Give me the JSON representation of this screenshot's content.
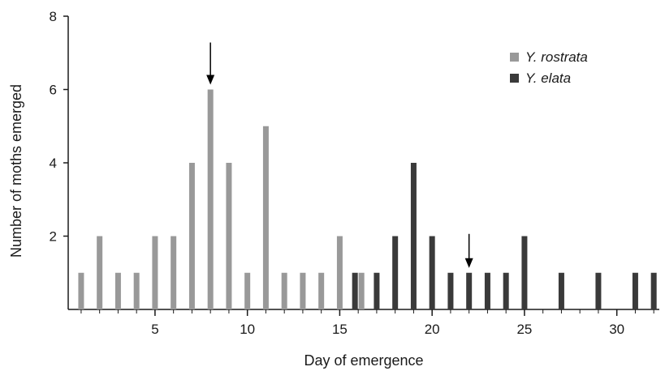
{
  "chart_data": {
    "type": "bar",
    "title": "",
    "xlabel": "Day of emergence",
    "ylabel": "Number of moths emerged",
    "xlim": [
      0.3,
      32.3
    ],
    "ylim": [
      0,
      8
    ],
    "x_ticks": [
      5,
      10,
      15,
      20,
      25,
      30
    ],
    "y_ticks": [
      2,
      4,
      6,
      8
    ],
    "grid": false,
    "legend_position": "top-right",
    "series": [
      {
        "name": "Y. rostrata",
        "color": "#999999",
        "x": [
          1,
          2,
          3,
          4,
          5,
          6,
          7,
          8,
          9,
          10,
          11,
          12,
          13,
          14,
          15,
          16
        ],
        "values": [
          1,
          2,
          1,
          1,
          2,
          2,
          4,
          6,
          4,
          1,
          5,
          1,
          1,
          1,
          2,
          1
        ]
      },
      {
        "name": "Y. elata",
        "color": "#3a3a3a",
        "x": [
          16,
          17,
          18,
          19,
          20,
          21,
          22,
          23,
          24,
          25,
          27,
          29,
          31,
          32
        ],
        "values": [
          1,
          1,
          2,
          4,
          2,
          1,
          1,
          1,
          1,
          2,
          1,
          1,
          1,
          1
        ]
      }
    ],
    "annotations": [
      {
        "type": "arrow",
        "series": "Y. rostrata",
        "x": 8,
        "points_to_y": 6
      },
      {
        "type": "arrow",
        "series": "Y. elata",
        "x": 22,
        "points_to_y": 1
      }
    ]
  }
}
